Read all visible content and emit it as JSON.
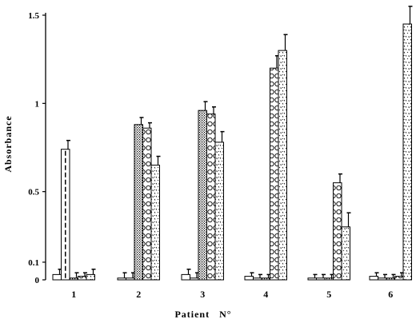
{
  "chart_data": {
    "type": "bar",
    "title": "",
    "xlabel": "Patient   N°",
    "ylabel": "Absorbance",
    "ylim": [
      0,
      1.5
    ],
    "yticks": [
      {
        "value": 0,
        "label": "0"
      },
      {
        "value": 0.1,
        "label": "0.1"
      },
      {
        "value": 0.5,
        "label": "0.5"
      },
      {
        "value": 1,
        "label": "1"
      },
      {
        "value": 1.5,
        "label": "1.5"
      }
    ],
    "categories": [
      "1",
      "2",
      "3",
      "4",
      "5",
      "6"
    ],
    "grid": false,
    "legend": "none",
    "series": [
      {
        "fill": "plain",
        "values": [
          0.03,
          0.01,
          0.03,
          0.02,
          0.01,
          0.02
        ],
        "errors": [
          0.03,
          0.03,
          0.03,
          0.02,
          0.02,
          0.02
        ]
      },
      {
        "fill": "dashed",
        "values": [
          0.74,
          0.01,
          0.01,
          0.01,
          0.01,
          0.01
        ],
        "errors": [
          0.05,
          0.03,
          0.03,
          0.02,
          0.02,
          0.02
        ]
      },
      {
        "fill": "dotted",
        "values": [
          0.01,
          0.88,
          0.96,
          0.01,
          0.01,
          0.01
        ],
        "errors": [
          0.03,
          0.04,
          0.05,
          0.02,
          0.02,
          0.02
        ]
      },
      {
        "fill": "circles",
        "values": [
          0.02,
          0.86,
          0.94,
          1.2,
          0.55,
          0.02
        ],
        "errors": [
          0.02,
          0.03,
          0.04,
          0.07,
          0.05,
          0.02
        ]
      },
      {
        "fill": "speckled",
        "values": [
          0.03,
          0.65,
          0.78,
          1.3,
          0.3,
          1.45
        ],
        "errors": [
          0.03,
          0.05,
          0.06,
          0.09,
          0.08,
          0.1
        ]
      }
    ]
  }
}
